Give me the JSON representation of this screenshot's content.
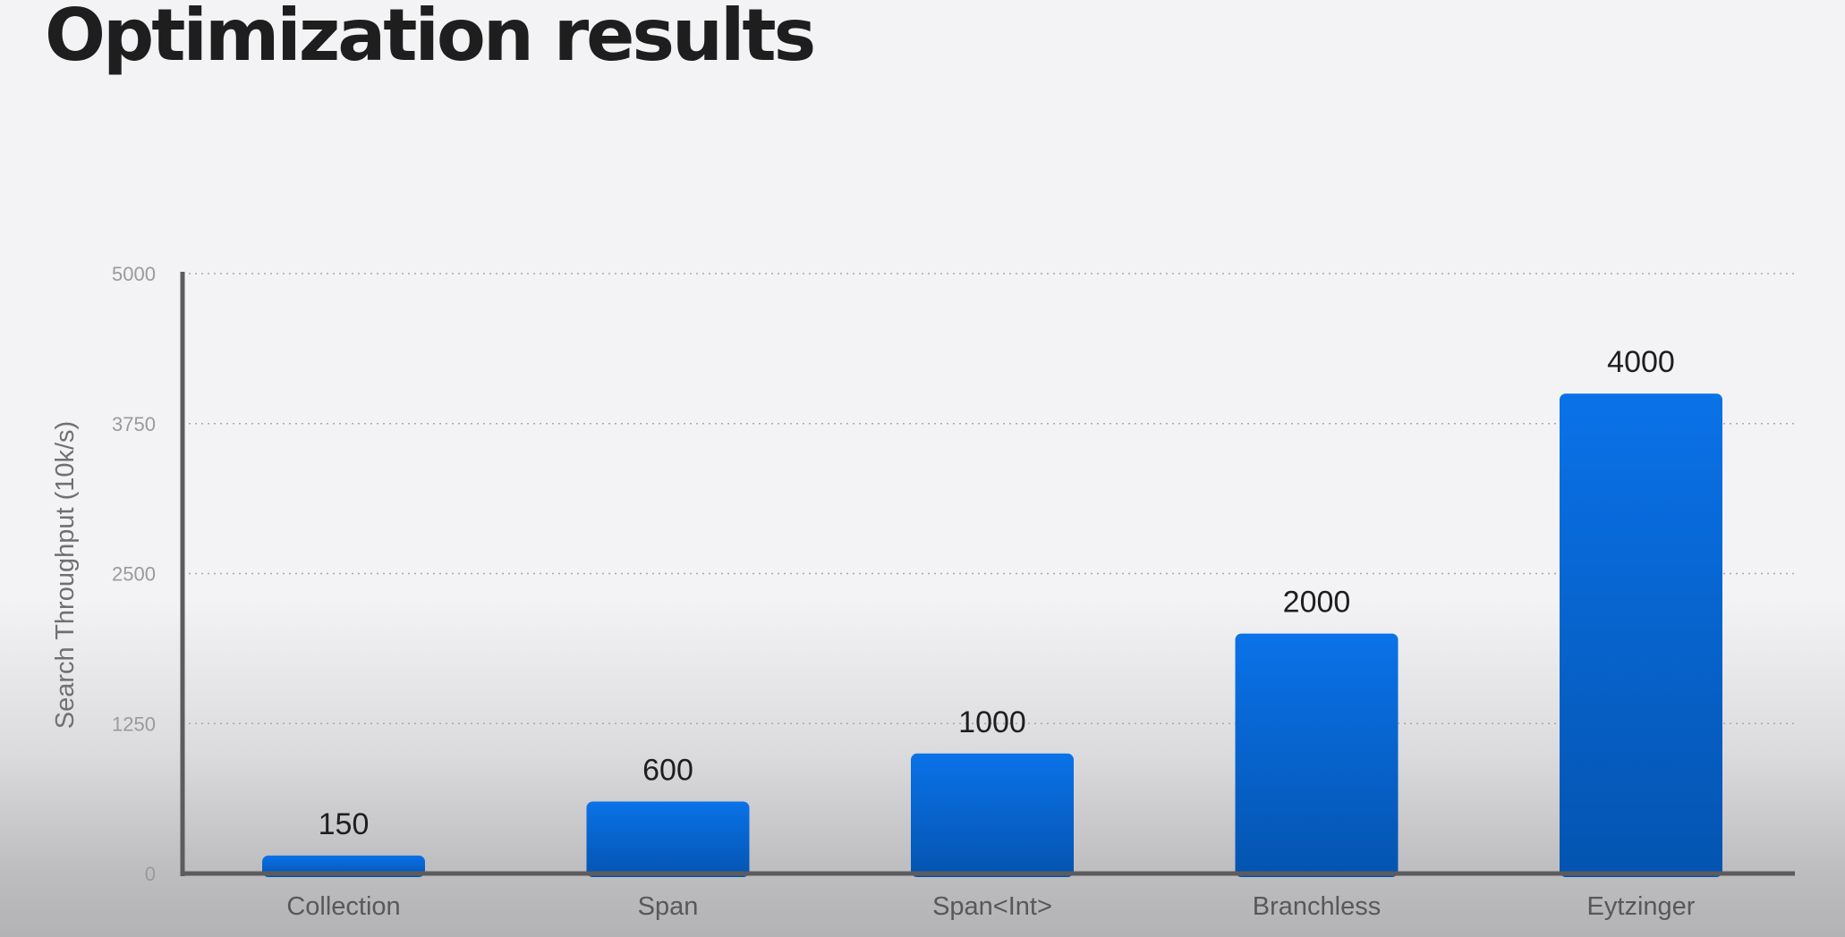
{
  "page": {
    "title": "Optimization results"
  },
  "colors": {
    "bar_top": "#0a72e8",
    "bar_bottom": "#0454b0",
    "axis": "#5c5c5e",
    "grid": "#a9a9ab"
  },
  "chart_data": {
    "type": "bar",
    "title": "",
    "xlabel": "",
    "ylabel": "Search Throughput (10k/s)",
    "categories": [
      "Collection",
      "Span",
      "Span<Int>",
      "Branchless",
      "Eytzinger"
    ],
    "values": [
      150,
      600,
      1000,
      2000,
      4000
    ],
    "data_labels": [
      "150",
      "600",
      "1000",
      "2000",
      "4000"
    ],
    "ylim": [
      0,
      5000
    ],
    "yticks": [
      0,
      1250,
      2500,
      3750,
      5000
    ],
    "grid": true,
    "grid_style": "dotted",
    "legend": "none"
  }
}
